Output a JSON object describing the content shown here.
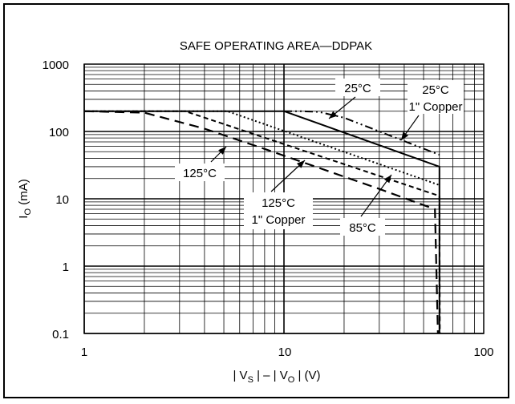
{
  "chart_data": {
    "type": "line",
    "title": "SAFE OPERATING AREA—DDPAK",
    "ylabel_base": "I",
    "ylabel_sub": "O",
    "ylabel_rest": " (mA)",
    "xlabel_parts": [
      "| V",
      "S",
      " | – | V",
      "O",
      " | (V)"
    ],
    "xscale": "log",
    "yscale": "log",
    "xlim": [
      1,
      100
    ],
    "ylim": [
      0.1,
      1000
    ],
    "x_ticks": [
      "1",
      "10",
      "100"
    ],
    "y_ticks": [
      "0.1",
      "1",
      "10",
      "100",
      "1000"
    ],
    "grid": true,
    "series": [
      {
        "name": "25°C",
        "style": "solid",
        "points": [
          [
            1,
            200
          ],
          [
            10,
            200
          ],
          [
            60,
            30
          ],
          [
            60,
            0.1
          ]
        ]
      },
      {
        "name": "25°C 1\" Copper",
        "style": "dashdot",
        "points": [
          [
            10,
            200
          ],
          [
            12,
            200
          ],
          [
            15,
            195
          ],
          [
            20,
            160
          ],
          [
            60,
            45
          ]
        ]
      },
      {
        "name": "85°C",
        "style": "dotted",
        "points": [
          [
            1,
            200
          ],
          [
            5.2,
            200
          ],
          [
            60,
            16
          ]
        ]
      },
      {
        "name": "125°C 1\" Copper",
        "style": "short-dash",
        "points": [
          [
            1,
            200
          ],
          [
            3.2,
            200
          ],
          [
            60,
            11
          ],
          [
            60.3,
            0.1
          ]
        ]
      },
      {
        "name": "125°C",
        "style": "long-dash",
        "points": [
          [
            1,
            200
          ],
          [
            2,
            190
          ],
          [
            4,
            110
          ],
          [
            8,
            55
          ],
          [
            30,
            14
          ],
          [
            57,
            7
          ],
          [
            59,
            0.1
          ]
        ]
      }
    ],
    "labels": {
      "l25": "25°C",
      "l25cu_1": "25°C",
      "l25cu_2": "1\" Copper",
      "l125": "125°C",
      "l125cu_1": "125°C",
      "l125cu_2": "1\" Copper",
      "l85": "85°C"
    }
  }
}
